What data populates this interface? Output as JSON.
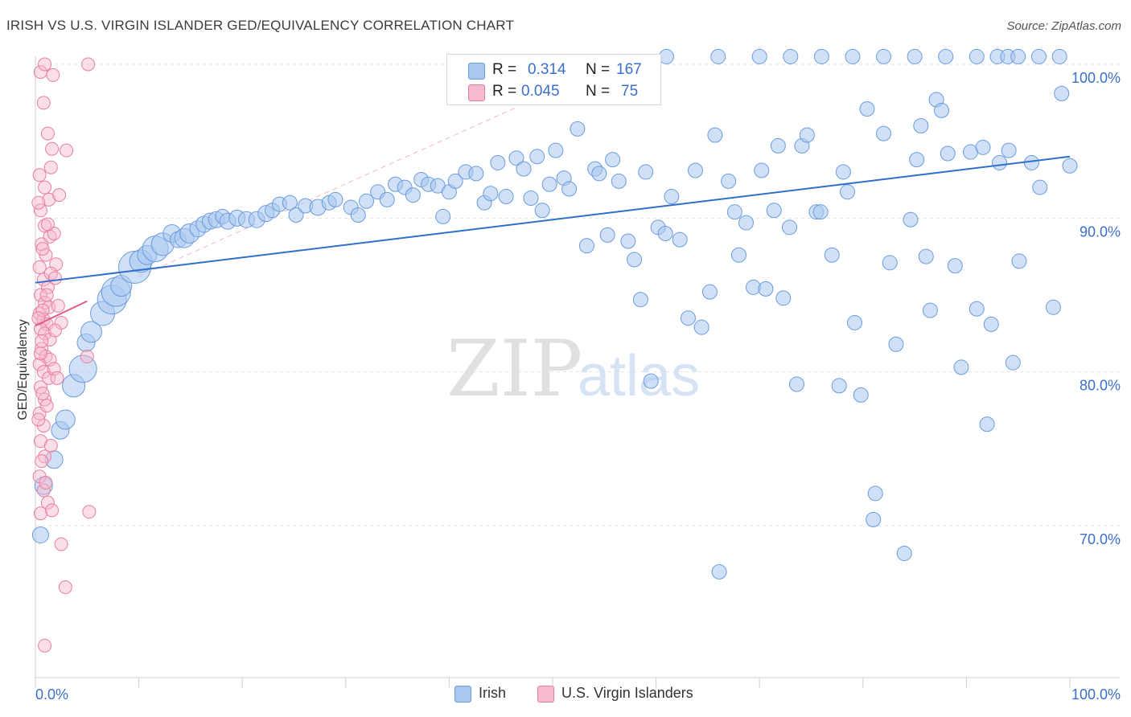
{
  "header": {
    "title": "IRISH VS U.S. VIRGIN ISLANDER GED/EQUIVALENCY CORRELATION CHART",
    "source": "Source: ZipAtlas.com"
  },
  "watermark": {
    "part1": "ZIP",
    "part2": "atlas"
  },
  "legend": {
    "rows": [
      {
        "r_label": "R =",
        "r_value": "0.314",
        "n_label": "N =",
        "n_value": "167",
        "color": "#a9c8f0",
        "stroke": "#6b9bdc"
      },
      {
        "r_label": "R =",
        "r_value": "0.045",
        "n_label": "N =",
        "n_value": "75",
        "color": "#f7b9cb",
        "stroke": "#e87ea0"
      }
    ]
  },
  "bottom_legend": [
    {
      "name": "Irish",
      "color": "#a9c8f0",
      "stroke": "#6b9bdc"
    },
    {
      "name": "U.S. Virgin Islanders",
      "color": "#f7b9cb",
      "stroke": "#e87ea0"
    }
  ],
  "chart_data": {
    "type": "scatter",
    "title": "IRISH VS U.S. VIRGIN ISLANDER GED/EQUIVALENCY CORRELATION CHART",
    "xlabel": "",
    "ylabel": "GED/Equivalency",
    "xlim": [
      0,
      100
    ],
    "ylim": [
      59.5,
      102
    ],
    "x_tick_labels": [
      "0.0%",
      "100.0%"
    ],
    "y_ticks": [
      70,
      80,
      90,
      100
    ],
    "y_tick_labels": [
      "70.0%",
      "80.0%",
      "90.0%",
      "100.0%"
    ],
    "grid": true,
    "legend_position": "top-center",
    "series": [
      {
        "name": "Irish",
        "color": "#a9c8f0",
        "stroke": "#6b9bdc",
        "trend": {
          "x": [
            0,
            100
          ],
          "y": [
            85.8,
            94.0
          ],
          "color": "#2f6fcc"
        },
        "points": [
          [
            0.5,
            69.4,
            10
          ],
          [
            0.8,
            72.6,
            11
          ],
          [
            1.8,
            74.3,
            11
          ],
          [
            2.4,
            76.2,
            11
          ],
          [
            2.9,
            76.9,
            12
          ],
          [
            3.7,
            79.1,
            14
          ],
          [
            4.6,
            80.2,
            17
          ],
          [
            4.9,
            81.9,
            11
          ],
          [
            5.4,
            82.6,
            13
          ],
          [
            6.5,
            83.8,
            15
          ],
          [
            7.4,
            84.7,
            18
          ],
          [
            7.8,
            85.2,
            18
          ],
          [
            8.3,
            85.6,
            13
          ],
          [
            9.6,
            86.8,
            20
          ],
          [
            10.2,
            87.2,
            14
          ],
          [
            10.8,
            87.6,
            12
          ],
          [
            11.6,
            88.0,
            16
          ],
          [
            12.3,
            88.3,
            14
          ],
          [
            13.2,
            89.0,
            11
          ],
          [
            13.8,
            88.6,
            10
          ],
          [
            14.4,
            88.7,
            12
          ],
          [
            14.9,
            89.0,
            12
          ],
          [
            15.7,
            89.3,
            10
          ],
          [
            16.3,
            89.6,
            10
          ],
          [
            16.9,
            89.8,
            10
          ],
          [
            17.5,
            89.9,
            10
          ],
          [
            18.1,
            90.1,
            9
          ],
          [
            18.6,
            89.8,
            10
          ],
          [
            19.5,
            90.0,
            10
          ],
          [
            20.4,
            89.9,
            10
          ],
          [
            21.4,
            89.9,
            10
          ],
          [
            22.3,
            90.3,
            10
          ],
          [
            22.9,
            90.5,
            9
          ],
          [
            23.6,
            90.9,
            9
          ],
          [
            24.6,
            91.0,
            9
          ],
          [
            25.2,
            90.2,
            9
          ],
          [
            26.1,
            90.8,
            9
          ],
          [
            27.3,
            90.7,
            10
          ],
          [
            28.4,
            91.0,
            9
          ],
          [
            29.0,
            91.2,
            9
          ],
          [
            30.5,
            90.7,
            9
          ],
          [
            31.2,
            90.2,
            9
          ],
          [
            32.0,
            91.1,
            9
          ],
          [
            33.1,
            91.7,
            9
          ],
          [
            34.0,
            91.2,
            9
          ],
          [
            34.8,
            92.2,
            9
          ],
          [
            35.7,
            92.0,
            9
          ],
          [
            36.5,
            91.5,
            9
          ],
          [
            37.3,
            92.5,
            9
          ],
          [
            38.0,
            92.2,
            9
          ],
          [
            38.9,
            92.1,
            9
          ],
          [
            39.4,
            90.1,
            9
          ],
          [
            40.0,
            91.7,
            9
          ],
          [
            40.6,
            92.4,
            9
          ],
          [
            41.6,
            93.0,
            9
          ],
          [
            42.6,
            92.9,
            9
          ],
          [
            43.4,
            91.0,
            9
          ],
          [
            44.0,
            91.6,
            9
          ],
          [
            44.7,
            93.6,
            9
          ],
          [
            45.5,
            91.4,
            9
          ],
          [
            46.5,
            93.9,
            9
          ],
          [
            47.2,
            93.2,
            9
          ],
          [
            47.9,
            91.3,
            9
          ],
          [
            48.5,
            94.0,
            9
          ],
          [
            49.0,
            90.5,
            9
          ],
          [
            49.7,
            92.2,
            9
          ],
          [
            50.3,
            94.4,
            9
          ],
          [
            51.1,
            92.6,
            9
          ],
          [
            51.6,
            91.9,
            9
          ],
          [
            52.4,
            95.8,
            9
          ],
          [
            53.3,
            88.2,
            9
          ],
          [
            54.1,
            93.2,
            9
          ],
          [
            54.5,
            92.9,
            9
          ],
          [
            55.3,
            88.9,
            9
          ],
          [
            55.8,
            93.8,
            9
          ],
          [
            56.4,
            92.4,
            9
          ],
          [
            57.3,
            88.5,
            9
          ],
          [
            57.9,
            87.3,
            9
          ],
          [
            58.5,
            84.7,
            9
          ],
          [
            59.0,
            93.0,
            9
          ],
          [
            59.5,
            79.4,
            9
          ],
          [
            60.2,
            89.4,
            9
          ],
          [
            60.9,
            89.0,
            9
          ],
          [
            61.5,
            91.4,
            9
          ],
          [
            62.3,
            88.6,
            9
          ],
          [
            63.1,
            83.5,
            9
          ],
          [
            63.8,
            93.1,
            9
          ],
          [
            64.4,
            82.9,
            9
          ],
          [
            65.2,
            85.2,
            9
          ],
          [
            65.7,
            95.4,
            9
          ],
          [
            66.1,
            67.0,
            9
          ],
          [
            67.0,
            92.4,
            9
          ],
          [
            67.6,
            90.4,
            9
          ],
          [
            68.0,
            87.6,
            9
          ],
          [
            68.7,
            89.7,
            9
          ],
          [
            69.4,
            85.5,
            9
          ],
          [
            70.2,
            93.1,
            9
          ],
          [
            70.6,
            85.4,
            9
          ],
          [
            71.4,
            90.5,
            9
          ],
          [
            71.8,
            94.7,
            9
          ],
          [
            72.3,
            84.8,
            9
          ],
          [
            72.9,
            89.4,
            9
          ],
          [
            73.6,
            79.2,
            9
          ],
          [
            74.1,
            94.7,
            9
          ],
          [
            74.6,
            95.4,
            9
          ],
          [
            75.5,
            90.4,
            9
          ],
          [
            75.9,
            90.4,
            9
          ],
          [
            77.0,
            87.6,
            9
          ],
          [
            77.7,
            79.1,
            9
          ],
          [
            78.1,
            93.0,
            9
          ],
          [
            78.5,
            91.7,
            9
          ],
          [
            79.2,
            83.2,
            9
          ],
          [
            79.8,
            78.5,
            9
          ],
          [
            80.4,
            97.1,
            9
          ],
          [
            81.2,
            72.1,
            9
          ],
          [
            81.0,
            70.4,
            9
          ],
          [
            82.0,
            95.5,
            9
          ],
          [
            82.6,
            87.1,
            9
          ],
          [
            83.2,
            81.8,
            9
          ],
          [
            84.0,
            68.2,
            9
          ],
          [
            84.6,
            89.9,
            9
          ],
          [
            85.2,
            93.8,
            9
          ],
          [
            85.6,
            96.0,
            9
          ],
          [
            86.1,
            87.5,
            9
          ],
          [
            86.5,
            84.0,
            9
          ],
          [
            87.1,
            97.7,
            9
          ],
          [
            87.6,
            97.0,
            9
          ],
          [
            88.2,
            94.2,
            9
          ],
          [
            88.9,
            86.9,
            9
          ],
          [
            89.5,
            80.3,
            9
          ],
          [
            90.4,
            94.3,
            9
          ],
          [
            91.0,
            84.1,
            9
          ],
          [
            91.6,
            94.6,
            9
          ],
          [
            92.0,
            76.6,
            9
          ],
          [
            92.4,
            83.1,
            9
          ],
          [
            93.2,
            93.6,
            9
          ],
          [
            94.1,
            94.4,
            9
          ],
          [
            94.5,
            80.6,
            9
          ],
          [
            95.1,
            87.2,
            9
          ],
          [
            96.3,
            93.6,
            9
          ],
          [
            97.1,
            92.0,
            9
          ],
          [
            98.4,
            84.2,
            9
          ],
          [
            99.2,
            98.1,
            9
          ],
          [
            100.0,
            93.4,
            9
          ],
          [
            61.0,
            100.5,
            9
          ],
          [
            66.0,
            100.5,
            9
          ],
          [
            70.0,
            100.5,
            9
          ],
          [
            73.0,
            100.5,
            9
          ],
          [
            76.0,
            100.5,
            9
          ],
          [
            79.0,
            100.5,
            9
          ],
          [
            82.0,
            100.5,
            9
          ],
          [
            85.0,
            100.5,
            9
          ],
          [
            88.0,
            100.5,
            9
          ],
          [
            91.0,
            100.5,
            9
          ],
          [
            93.0,
            100.5,
            9
          ],
          [
            94.0,
            100.5,
            9
          ],
          [
            95.0,
            100.5,
            9
          ],
          [
            97.0,
            100.5,
            9
          ],
          [
            99.0,
            100.5,
            9
          ]
        ]
      },
      {
        "name": "U.S. Virgin Islanders",
        "color": "#f7b9cb",
        "stroke": "#e87ea0",
        "trend": {
          "x": [
            0,
            5
          ],
          "y": [
            83.0,
            84.6
          ],
          "color": "#e05c85"
        },
        "points": [
          [
            0.5,
            99.5,
            8
          ],
          [
            0.8,
            97.5,
            8
          ],
          [
            1.2,
            95.5,
            8
          ],
          [
            1.6,
            94.5,
            8
          ],
          [
            0.4,
            92.8,
            8
          ],
          [
            0.9,
            92.0,
            8
          ],
          [
            1.3,
            91.2,
            8
          ],
          [
            0.5,
            90.5,
            8
          ],
          [
            0.9,
            89.5,
            8
          ],
          [
            1.4,
            88.8,
            8
          ],
          [
            0.6,
            88.3,
            8
          ],
          [
            1.0,
            87.6,
            8
          ],
          [
            0.4,
            86.8,
            8
          ],
          [
            0.8,
            86.0,
            8
          ],
          [
            1.2,
            85.5,
            8
          ],
          [
            0.5,
            85.0,
            8
          ],
          [
            0.9,
            84.5,
            8
          ],
          [
            1.3,
            84.2,
            8
          ],
          [
            0.4,
            83.8,
            8
          ],
          [
            0.8,
            83.4,
            8
          ],
          [
            1.1,
            83.1,
            8
          ],
          [
            0.5,
            82.8,
            8
          ],
          [
            0.9,
            82.5,
            8
          ],
          [
            1.4,
            82.1,
            8
          ],
          [
            0.6,
            81.5,
            8
          ],
          [
            1.0,
            81.0,
            8
          ],
          [
            0.4,
            80.5,
            8
          ],
          [
            0.8,
            80.0,
            8
          ],
          [
            1.3,
            79.6,
            8
          ],
          [
            0.5,
            79.0,
            8
          ],
          [
            0.9,
            78.2,
            8
          ],
          [
            0.4,
            77.3,
            8
          ],
          [
            0.8,
            76.5,
            8
          ],
          [
            0.5,
            75.5,
            8
          ],
          [
            0.9,
            74.5,
            8
          ],
          [
            0.4,
            73.2,
            8
          ],
          [
            0.8,
            72.3,
            8
          ],
          [
            1.2,
            71.5,
            8
          ],
          [
            0.5,
            70.8,
            8
          ],
          [
            2.5,
            68.8,
            8
          ],
          [
            2.9,
            66.0,
            8
          ],
          [
            5.2,
            70.9,
            8
          ],
          [
            5.0,
            81.0,
            8
          ],
          [
            2.0,
            87.0,
            8
          ],
          [
            2.3,
            91.5,
            8
          ],
          [
            1.8,
            89.0,
            8
          ],
          [
            0.9,
            62.2,
            8
          ],
          [
            2.2,
            84.3,
            8
          ],
          [
            2.5,
            83.2,
            8
          ],
          [
            1.9,
            82.7,
            8
          ],
          [
            1.5,
            86.4,
            8
          ],
          [
            1.1,
            85.0,
            8
          ],
          [
            0.7,
            84.0,
            8
          ],
          [
            0.3,
            83.5,
            8
          ],
          [
            0.6,
            82.0,
            8
          ],
          [
            1.4,
            80.8,
            8
          ],
          [
            1.8,
            80.2,
            8
          ],
          [
            2.1,
            79.6,
            8
          ],
          [
            0.7,
            78.6,
            8
          ],
          [
            1.1,
            77.8,
            8
          ],
          [
            0.3,
            76.9,
            8
          ],
          [
            1.5,
            75.2,
            8
          ],
          [
            0.6,
            74.2,
            8
          ],
          [
            1.0,
            72.8,
            8
          ],
          [
            1.6,
            71.0,
            8
          ],
          [
            0.9,
            100.0,
            8
          ],
          [
            5.1,
            100.0,
            8
          ],
          [
            1.7,
            99.3,
            8
          ],
          [
            3.0,
            94.4,
            8
          ],
          [
            1.5,
            93.3,
            8
          ],
          [
            0.7,
            88.0,
            8
          ],
          [
            1.2,
            89.6,
            8
          ],
          [
            0.3,
            91.0,
            8
          ],
          [
            1.9,
            86.1,
            8
          ],
          [
            0.5,
            81.2,
            8
          ]
        ]
      }
    ]
  }
}
